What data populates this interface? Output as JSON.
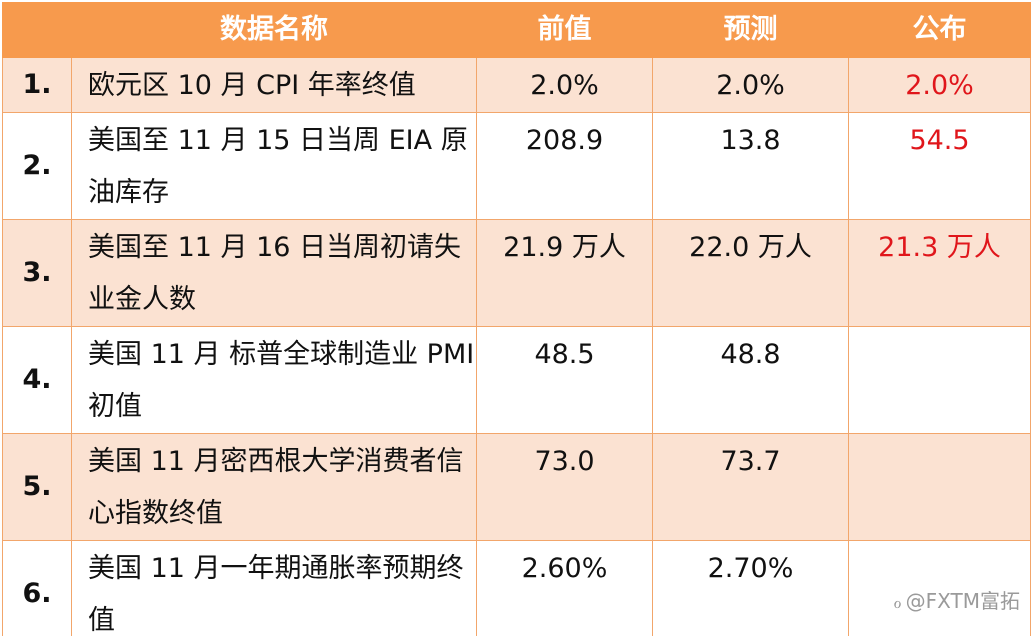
{
  "table": {
    "headers": {
      "name": "数据名称",
      "previous": "前值",
      "forecast": "预测",
      "published": "公布"
    },
    "rows": [
      {
        "index": "1.",
        "name": "欧元区 10 月 CPI 年率终值",
        "previous": "2.0%",
        "forecast": "2.0%",
        "published": "2.0%"
      },
      {
        "index": "2.",
        "name": "美国至 11 月 15 日当周 EIA 原油库存",
        "previous": "208.9",
        "forecast": "13.8",
        "published": "54.5"
      },
      {
        "index": "3.",
        "name": "美国至 11 月 16 日当周初请失业金人数",
        "previous": "21.9 万人",
        "forecast": "22.0 万人",
        "published": "21.3 万人"
      },
      {
        "index": "4.",
        "name": "美国 11 月 标普全球制造业 PMI 初值",
        "previous": "48.5",
        "forecast": "48.8",
        "published": ""
      },
      {
        "index": "5.",
        "name": "美国 11 月密西根大学消费者信心指数终值",
        "previous": "73.0",
        "forecast": "73.7",
        "published": ""
      },
      {
        "index": "6.",
        "name": "美国 11 月一年期通胀率预期终值",
        "previous": "2.60%",
        "forecast": "2.70%",
        "published": ""
      }
    ]
  },
  "watermark": {
    "text": "@FXTM富拓"
  },
  "colors": {
    "header_bg": "#f79a4d",
    "row_alt_bg": "#fbe2d2",
    "published_text": "#e0161b"
  }
}
